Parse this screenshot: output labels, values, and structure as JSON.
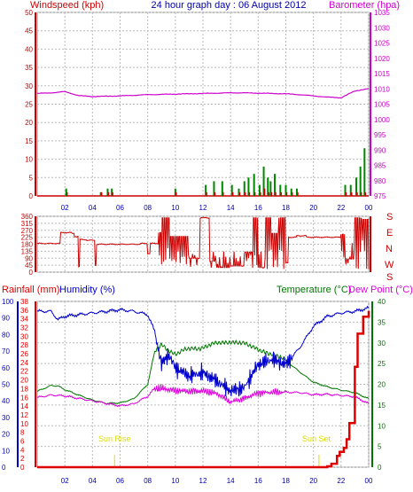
{
  "colors": {
    "wind": "#cc0000",
    "gust": "#008800",
    "baro": "#cc00cc",
    "grid": "#bbbbbb",
    "axis_blue": "#0000aa",
    "hum": "#0000cc",
    "temp": "#007700",
    "dew": "#dd00dd",
    "rain": "#dd0000",
    "sun": "#dddd00"
  },
  "header": {
    "title": "24 hour graph day : 06 August 2012",
    "wind_label": "Windspeed (kph)",
    "baro_label": "Barometer (hpa)"
  },
  "direction": {
    "compass": [
      "S",
      "E",
      "N",
      "W",
      "S"
    ]
  },
  "bottom": {
    "rain_label": "Rainfall (mm)",
    "hum_label": "Humidity (%)",
    "temp_label": "Temperature (°C)",
    "dew_label": "Dew Point (°C)",
    "sunrise": "Sun Rise",
    "sunset": "Sun Set"
  },
  "chart_data": [
    {
      "type": "line",
      "title": "24 hour graph day : 06 August 2012",
      "x_ticks": [
        "02",
        "04",
        "06",
        "08",
        "10",
        "12",
        "14",
        "16",
        "18",
        "20",
        "22",
        "00"
      ],
      "left_axis": {
        "label": "Windspeed (kph)",
        "ylim": [
          0,
          50
        ],
        "ticks": [
          "0",
          "5",
          "10",
          "15",
          "20",
          "25",
          "30",
          "35",
          "40",
          "45",
          "50"
        ]
      },
      "right_axis": {
        "label": "Barometer (hpa)",
        "ylim": [
          975,
          1035
        ],
        "ticks": [
          "975",
          "980",
          "985",
          "990",
          "995",
          "1000",
          "1005",
          "1010",
          "1015",
          "1020",
          "1025",
          "1030",
          "1035"
        ]
      },
      "series": [
        {
          "name": "Barometer (hpa)",
          "axis": "right",
          "x": [
            0,
            1,
            2,
            3,
            4,
            5,
            6,
            7,
            8,
            9,
            10,
            11,
            12,
            13,
            14,
            15,
            16,
            17,
            18,
            19,
            20,
            21,
            22,
            23,
            24
          ],
          "y": [
            1008.5,
            1008.7,
            1009.1,
            1007.8,
            1007.5,
            1007.6,
            1007.7,
            1007.9,
            1008.1,
            1008.2,
            1008.3,
            1008.4,
            1008.5,
            1008.6,
            1008.7,
            1008.7,
            1008.6,
            1008.5,
            1008.4,
            1008.1,
            1007.7,
            1007.3,
            1007.1,
            1009.3,
            1010.1
          ]
        }
      ],
      "bars": {
        "name": "Windspeed (kph)",
        "x": [
          2.1,
          4.6,
          5.1,
          5.4,
          10.0,
          12.2,
          12.8,
          13.4,
          14.1,
          14.6,
          15.0,
          15.3,
          15.7,
          16.1,
          16.4,
          16.7,
          16.9,
          17.2,
          17.6,
          18.0,
          18.4,
          18.8,
          22.3,
          22.7,
          23.1,
          23.4,
          23.7
        ],
        "wind": [
          1,
          1,
          1,
          1,
          1,
          1,
          1,
          1,
          1,
          1,
          1,
          1,
          1,
          1,
          2,
          1,
          1,
          1,
          1,
          1,
          1,
          1,
          1,
          1,
          1,
          1,
          1
        ],
        "gust": [
          2,
          1,
          2,
          2,
          2,
          3,
          4,
          4,
          3,
          2,
          4,
          5,
          6,
          3,
          8,
          5,
          4,
          6,
          3,
          3,
          2,
          2,
          3,
          3,
          5,
          8,
          13
        ]
      }
    },
    {
      "type": "line",
      "title": "",
      "x_ticks": [
        "02",
        "04",
        "06",
        "08",
        "10",
        "12",
        "14",
        "16",
        "18",
        "20",
        "22",
        "00"
      ],
      "left_axis": {
        "label": "",
        "ylim": [
          0,
          360
        ],
        "ticks": [
          "0",
          "45",
          "90",
          "135",
          "180",
          "225",
          "270",
          "315",
          "360"
        ]
      },
      "series": [
        {
          "name": "Wind direction",
          "x": [
            0,
            1.5,
            1.7,
            2.5,
            2.7,
            3.0,
            3.1,
            3.6,
            4.2,
            4.3,
            7.5,
            8.0,
            8.2,
            8.8,
            9.0,
            9.6,
            10.5,
            11.0,
            11.8,
            12.5,
            13.0,
            14.0,
            15.0,
            15.6,
            16.0,
            16.5,
            17.0,
            17.5,
            18.0,
            18.2,
            18.8,
            19.5,
            21.0,
            22.0,
            22.3,
            23.0,
            23.5,
            24.0
          ],
          "y": [
            185,
            185,
            255,
            250,
            230,
            35,
            210,
            205,
            45,
            180,
            185,
            120,
            185,
            255,
            350,
            230,
            230,
            90,
            350,
            70,
            30,
            40,
            130,
            350,
            30,
            350,
            250,
            350,
            60,
            225,
            235,
            225,
            225,
            245,
            85,
            350,
            340,
            20
          ]
        }
      ]
    },
    {
      "type": "line",
      "title": "",
      "x_ticks": [
        "02",
        "04",
        "06",
        "08",
        "10",
        "12",
        "14",
        "16",
        "18",
        "20",
        "22",
        "00"
      ],
      "left_axis_rain": {
        "label": "Rainfall (mm)",
        "ylim": [
          0,
          38
        ],
        "ticks": [
          "0",
          "2",
          "4",
          "6",
          "8",
          "10",
          "12",
          "14",
          "16",
          "18",
          "20",
          "22",
          "24",
          "26",
          "28",
          "30",
          "32",
          "34",
          "36",
          "38"
        ]
      },
      "left_axis_hum": {
        "label": "Humidity (%)",
        "ylim": [
          0,
          100
        ],
        "ticks": [
          "0",
          "10",
          "20",
          "30",
          "40",
          "50",
          "60",
          "70",
          "80",
          "90",
          "100"
        ]
      },
      "right_axis": {
        "label": "Temperature (°C) Dew Point (°C)",
        "ylim": [
          0,
          40
        ],
        "ticks": [
          "0",
          "5",
          "10",
          "15",
          "20",
          "25",
          "30",
          "35",
          "40"
        ]
      },
      "series": [
        {
          "name": "Humidity (%)",
          "axis": "hum",
          "x": [
            0,
            1,
            1.5,
            2,
            3,
            4,
            5,
            6,
            7,
            8,
            8.5,
            9,
            9.5,
            10,
            11,
            12,
            13,
            14,
            15,
            16,
            17,
            18,
            19,
            20,
            21,
            22,
            23,
            24
          ],
          "y": [
            94,
            94,
            89,
            91,
            92,
            93,
            94,
            95,
            94,
            92,
            82,
            62,
            68,
            60,
            55,
            57,
            52,
            46,
            48,
            62,
            65,
            62,
            72,
            85,
            91,
            93,
            94,
            96
          ]
        },
        {
          "name": "Temperature (°C)",
          "axis": "right",
          "x": [
            0,
            1,
            1.5,
            2,
            3,
            4,
            5,
            6,
            7,
            8,
            8.5,
            9,
            10,
            11,
            12,
            13,
            14,
            15,
            16,
            17,
            18,
            19,
            20,
            21,
            22,
            23,
            24
          ],
          "y": [
            18.3,
            19.7,
            19.6,
            18.7,
            17.4,
            16.2,
            15.4,
            15.5,
            16.5,
            20.0,
            27.8,
            29.2,
            27.6,
            28.3,
            29.1,
            29.8,
            30.3,
            29.9,
            28.3,
            27.4,
            25.7,
            23.0,
            20.5,
            19.4,
            18.6,
            18.0,
            16.5
          ]
        },
        {
          "name": "Dew Point (°C)",
          "axis": "right",
          "x": [
            0,
            1,
            2,
            3,
            4,
            5,
            6,
            7,
            8,
            8.5,
            9,
            10,
            11,
            12,
            13,
            14,
            15,
            16,
            17,
            18,
            19,
            20,
            21,
            22,
            23,
            24
          ],
          "y": [
            16.8,
            17.4,
            17.2,
            16.6,
            16.0,
            15.4,
            14.8,
            15.3,
            17.1,
            19.0,
            19.0,
            18.5,
            18.3,
            18.4,
            17.8,
            15.7,
            16.6,
            17.9,
            18.1,
            18.1,
            18.0,
            17.5,
            17.6,
            17.3,
            17.0,
            15.3
          ]
        },
        {
          "name": "Rainfall (mm)",
          "axis": "rain",
          "x": [
            0,
            20.5,
            21.0,
            21.3,
            21.7,
            21.9,
            22.2,
            22.4,
            22.6,
            23.0,
            23.2,
            23.6,
            24.0
          ],
          "y": [
            0,
            0,
            0.2,
            0.8,
            2.6,
            3.5,
            4.4,
            6.4,
            10.1,
            23.0,
            30.6,
            34.5,
            35.8
          ]
        }
      ],
      "annotations": [
        {
          "text": "Sun Rise",
          "x": 5.6
        },
        {
          "text": "Sun Set",
          "x": 20.4
        }
      ]
    }
  ]
}
